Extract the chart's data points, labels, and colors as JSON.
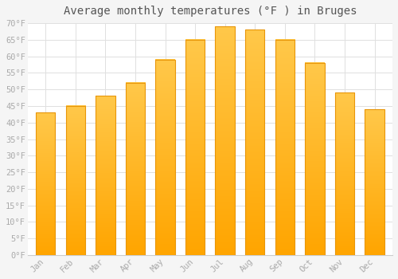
{
  "title": "Average monthly temperatures (°F ) in Bruges",
  "months": [
    "Jan",
    "Feb",
    "Mar",
    "Apr",
    "May",
    "Jun",
    "Jul",
    "Aug",
    "Sep",
    "Oct",
    "Nov",
    "Dec"
  ],
  "values": [
    43,
    45,
    48,
    52,
    59,
    65,
    69,
    68,
    65,
    58,
    49,
    44
  ],
  "bar_color_top": "#FFC84A",
  "bar_color_bottom": "#FFA500",
  "bar_edge_color": "#E8960A",
  "background_color": "#F5F5F5",
  "plot_bg_color": "#FFFFFF",
  "grid_color": "#E0E0E0",
  "ylim": [
    0,
    70
  ],
  "ytick_step": 5,
  "title_fontsize": 10,
  "tick_fontsize": 7.5,
  "tick_label_color": "#AAAAAA",
  "title_color": "#555555",
  "bar_width": 0.65
}
